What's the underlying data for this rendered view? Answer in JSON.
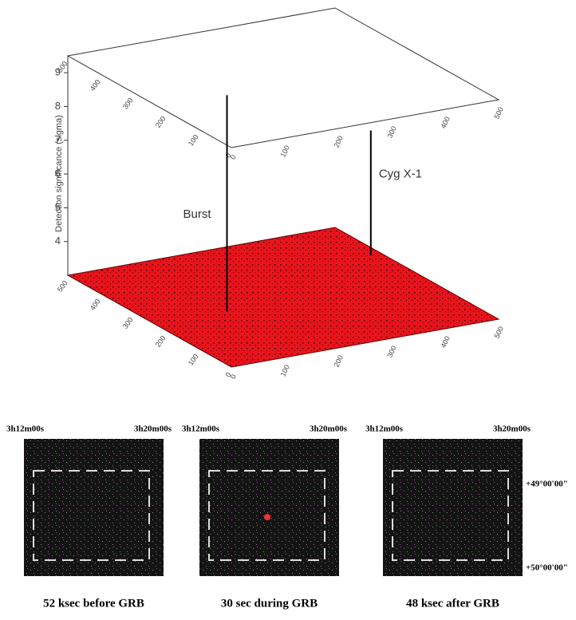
{
  "chart_data": {
    "type": "spikes3d",
    "ylabel": "Detection significance (sigma)",
    "ylim": [
      3,
      9.5
    ],
    "yticks": [
      4,
      5,
      6,
      7,
      8,
      9
    ],
    "xlim": [
      0,
      500
    ],
    "xticks": [
      0,
      100,
      200,
      300,
      400,
      500
    ],
    "depth_lim": [
      0,
      500
    ],
    "depth_ticks": [
      0,
      100,
      200,
      300,
      400,
      500
    ],
    "floor_color": "#e8141c",
    "peaks": [
      {
        "name": "Burst",
        "x": 135,
        "y": 234,
        "value": 9.4
      },
      {
        "name": "Cyg X-1",
        "x": 480,
        "y": 358,
        "value": 6.7
      }
    ]
  },
  "panels": [
    {
      "ra_left": "3h12m00s",
      "ra_right": "3h20m00s",
      "caption": "52 ksec before GRB"
    },
    {
      "ra_left": "3h12m00s",
      "ra_right": "3h20m00s",
      "caption": "30 sec during GRB"
    },
    {
      "ra_left": "3h12m00s",
      "ra_right": "3h20m00s",
      "caption": "48 ksec after GRB"
    }
  ],
  "dec_labels": [
    "+49°00'00\"",
    "+50°00'00\""
  ]
}
